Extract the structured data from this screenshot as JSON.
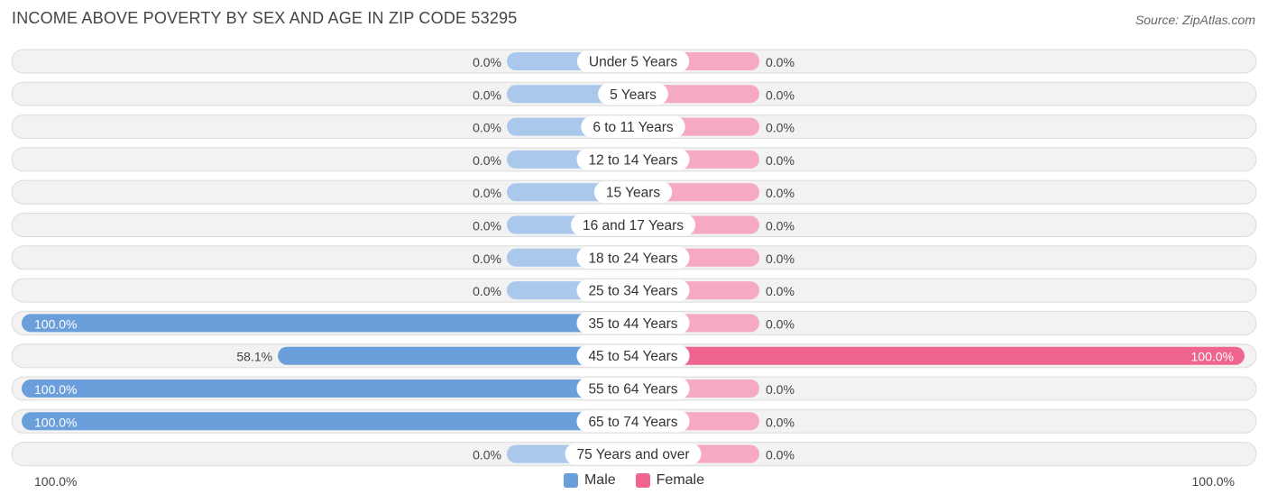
{
  "title": "INCOME ABOVE POVERTY BY SEX AND AGE IN ZIP CODE 53295",
  "source": "Source: ZipAtlas.com",
  "colors": {
    "male": "#6a9fdb",
    "male_light": "#a9c8ec",
    "female": "#f06590",
    "female_light": "#f5a9c2"
  },
  "axis": {
    "left_label": "100.0%",
    "right_label": "100.0%"
  },
  "legend": {
    "male": "Male",
    "female": "Female"
  },
  "chart_data": {
    "type": "bar",
    "orientation": "horizontal-diverging",
    "title": "INCOME ABOVE POVERTY BY SEX AND AGE IN ZIP CODE 53295",
    "xlim": [
      -100,
      100
    ],
    "categories": [
      "Under 5 Years",
      "5 Years",
      "6 to 11 Years",
      "12 to 14 Years",
      "15 Years",
      "16 and 17 Years",
      "18 to 24 Years",
      "25 to 34 Years",
      "35 to 44 Years",
      "45 to 54 Years",
      "55 to 64 Years",
      "65 to 74 Years",
      "75 Years and over"
    ],
    "series": [
      {
        "name": "Male",
        "values": [
          0.0,
          0.0,
          0.0,
          0.0,
          0.0,
          0.0,
          0.0,
          0.0,
          100.0,
          58.1,
          100.0,
          100.0,
          0.0
        ],
        "labels": [
          "0.0%",
          "0.0%",
          "0.0%",
          "0.0%",
          "0.0%",
          "0.0%",
          "0.0%",
          "0.0%",
          "100.0%",
          "58.1%",
          "100.0%",
          "100.0%",
          "0.0%"
        ]
      },
      {
        "name": "Female",
        "values": [
          0.0,
          0.0,
          0.0,
          0.0,
          0.0,
          0.0,
          0.0,
          0.0,
          0.0,
          100.0,
          0.0,
          0.0,
          0.0
        ],
        "labels": [
          "0.0%",
          "0.0%",
          "0.0%",
          "0.0%",
          "0.0%",
          "0.0%",
          "0.0%",
          "0.0%",
          "0.0%",
          "100.0%",
          "0.0%",
          "0.0%",
          "0.0%"
        ]
      }
    ]
  }
}
